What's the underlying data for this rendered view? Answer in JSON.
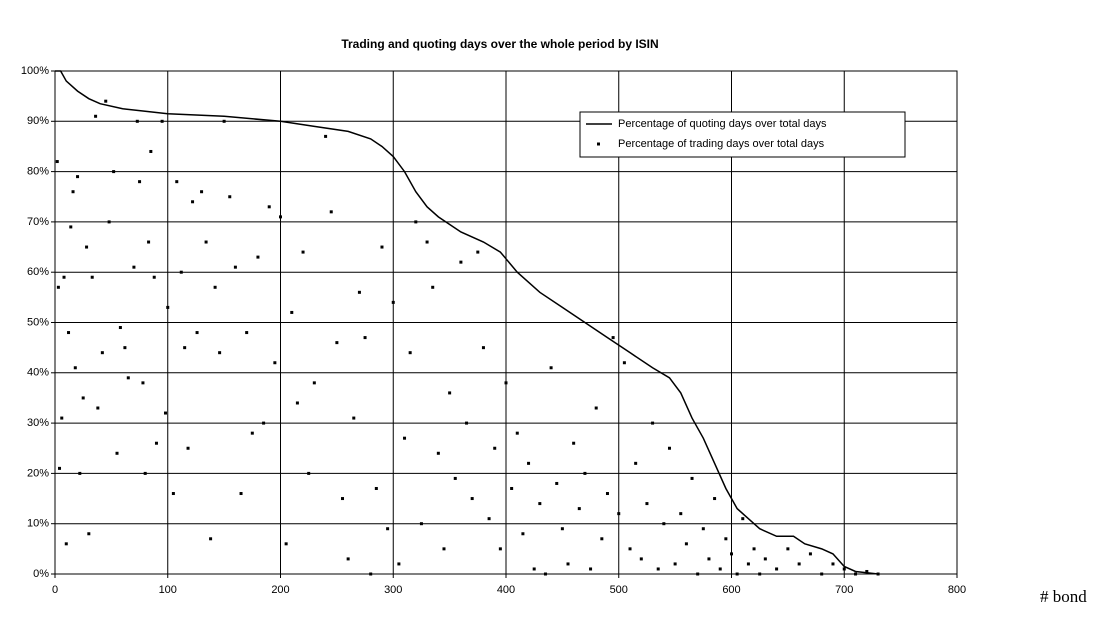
{
  "chart_data": {
    "type": "line",
    "title": "Trading and quoting days over the whole period by ISIN",
    "xlabel": "# bond",
    "xlim": [
      0,
      800
    ],
    "xticks": [
      0,
      100,
      200,
      300,
      400,
      500,
      600,
      700,
      800
    ],
    "ylim": [
      0,
      100
    ],
    "yticks": [
      {
        "value": 0,
        "label": "0%"
      },
      {
        "value": 10,
        "label": "10%"
      },
      {
        "value": 20,
        "label": "20%"
      },
      {
        "value": 30,
        "label": "30%"
      },
      {
        "value": 40,
        "label": "40%"
      },
      {
        "value": 50,
        "label": "50%"
      },
      {
        "value": 60,
        "label": "60%"
      },
      {
        "value": 70,
        "label": "70%"
      },
      {
        "value": 80,
        "label": "80%"
      },
      {
        "value": 90,
        "label": "90%"
      },
      {
        "value": 100,
        "label": "100%"
      }
    ],
    "grid": true,
    "legend": "upper-right",
    "series": [
      {
        "name": "Percentage of quoting days over total days",
        "type": "line",
        "color": "#000000",
        "x": [
          0,
          5,
          10,
          20,
          30,
          40,
          60,
          80,
          100,
          150,
          200,
          230,
          260,
          280,
          290,
          300,
          310,
          320,
          330,
          340,
          360,
          380,
          395,
          410,
          430,
          450,
          470,
          490,
          510,
          530,
          545,
          555,
          565,
          575,
          585,
          595,
          605,
          615,
          625,
          640,
          655,
          665,
          680,
          690,
          700,
          710,
          730
        ],
        "values": [
          100,
          100,
          98,
          96,
          94.5,
          93.5,
          92.5,
          92,
          91.5,
          91,
          90,
          89,
          88,
          86.5,
          85,
          83,
          80,
          76,
          73,
          71,
          68,
          66,
          64,
          60,
          56,
          53,
          50,
          47,
          44,
          41,
          39,
          36,
          31,
          27,
          22,
          17,
          13,
          11,
          9,
          7.5,
          7.5,
          6,
          5,
          4,
          1.5,
          0.5,
          0
        ]
      },
      {
        "name": "Percentage of trading days over total days",
        "type": "scatter",
        "color": "#000000",
        "x": [
          2,
          3,
          4,
          6,
          8,
          10,
          12,
          14,
          16,
          18,
          20,
          22,
          25,
          28,
          30,
          33,
          36,
          38,
          42,
          45,
          48,
          52,
          55,
          58,
          62,
          65,
          70,
          73,
          75,
          78,
          80,
          83,
          85,
          88,
          90,
          95,
          98,
          100,
          105,
          108,
          112,
          115,
          118,
          122,
          126,
          130,
          134,
          138,
          142,
          146,
          150,
          155,
          160,
          165,
          170,
          175,
          180,
          185,
          190,
          195,
          200,
          205,
          210,
          215,
          220,
          225,
          230,
          240,
          245,
          250,
          255,
          260,
          265,
          270,
          275,
          280,
          285,
          290,
          295,
          300,
          305,
          310,
          315,
          320,
          325,
          330,
          335,
          340,
          345,
          350,
          355,
          360,
          365,
          370,
          375,
          380,
          385,
          390,
          395,
          400,
          405,
          410,
          415,
          420,
          425,
          430,
          435,
          440,
          445,
          450,
          455,
          460,
          465,
          470,
          475,
          480,
          485,
          490,
          495,
          500,
          505,
          510,
          515,
          520,
          525,
          530,
          535,
          540,
          545,
          550,
          555,
          560,
          565,
          570,
          575,
          580,
          585,
          590,
          595,
          600,
          605,
          610,
          615,
          620,
          625,
          630,
          640,
          650,
          660,
          670,
          680,
          690,
          700,
          710,
          720,
          730
        ],
        "values": [
          82,
          57,
          21,
          31,
          59,
          6,
          48,
          69,
          76,
          41,
          79,
          20,
          35,
          65,
          8,
          59,
          91,
          33,
          44,
          94,
          70,
          80,
          24,
          49,
          45,
          39,
          61,
          90,
          78,
          38,
          20,
          66,
          84,
          59,
          26,
          90,
          32,
          53,
          16,
          78,
          60,
          45,
          25,
          74,
          48,
          76,
          66,
          7,
          57,
          44,
          90,
          75,
          61,
          16,
          48,
          28,
          63,
          30,
          73,
          42,
          71,
          6,
          52,
          34,
          64,
          20,
          38,
          87,
          72,
          46,
          15,
          3,
          31,
          56,
          47,
          0,
          17,
          65,
          9,
          54,
          2,
          27,
          44,
          70,
          10,
          66,
          57,
          24,
          5,
          36,
          19,
          62,
          30,
          15,
          64,
          45,
          11,
          25,
          5,
          38,
          17,
          28,
          8,
          22,
          1,
          14,
          0,
          41,
          18,
          9,
          2,
          26,
          13,
          20,
          1,
          33,
          7,
          16,
          47,
          12,
          42,
          5,
          22,
          3,
          14,
          30,
          1,
          10,
          25,
          2,
          12,
          6,
          19,
          0,
          9,
          3,
          15,
          1,
          7,
          4,
          0,
          11,
          2,
          5,
          0,
          3,
          1,
          5,
          2,
          4,
          0,
          2,
          1,
          0,
          0.5,
          0
        ]
      }
    ]
  }
}
